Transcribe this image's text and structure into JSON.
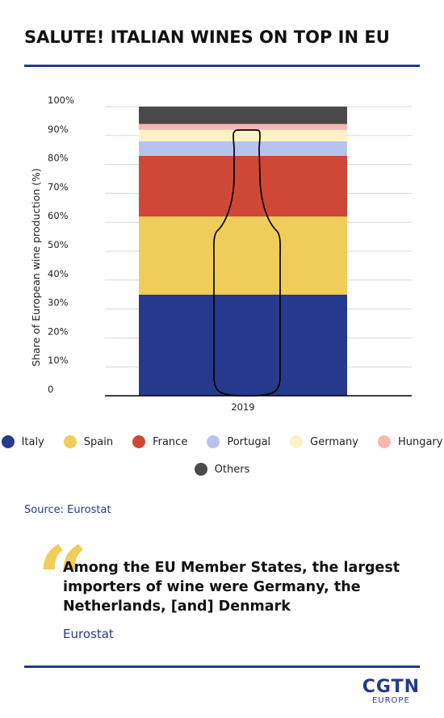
{
  "header": {
    "title": "SALUTE! ITALIAN WINES ON TOP IN EU"
  },
  "chart_data": {
    "type": "bar",
    "stacked": true,
    "categories": [
      "2019"
    ],
    "ylabel": "Share of European wine production (%)",
    "xlabel": "",
    "ylim": [
      0,
      100
    ],
    "y_ticks": [
      "0",
      "10%",
      "20%",
      "30%",
      "40%",
      "50%",
      "60%",
      "70%",
      "80%",
      "90%",
      "100%"
    ],
    "grid": true,
    "legend_position": "bottom",
    "series": [
      {
        "name": "Italy",
        "values": [
          35
        ],
        "color": "#253a8c"
      },
      {
        "name": "Spain",
        "values": [
          27
        ],
        "color": "#f0cd5a"
      },
      {
        "name": "France",
        "values": [
          21
        ],
        "color": "#cf4836"
      },
      {
        "name": "Portugal",
        "values": [
          5
        ],
        "color": "#b6c4ec"
      },
      {
        "name": "Germany",
        "values": [
          4
        ],
        "color": "#fdf2c6"
      },
      {
        "name": "Hungary",
        "values": [
          2
        ],
        "color": "#f7b6b0"
      },
      {
        "name": "Others",
        "values": [
          6
        ],
        "color": "#4a4a4a"
      }
    ],
    "overlay_icon": "wine-bottle-outline-icon"
  },
  "source": {
    "text": "Source: Eurostat"
  },
  "quote": {
    "text": "Among the EU Member States, the largest importers of wine were Germany, the Netherlands, [and] Denmark",
    "attribution": "Eurostat",
    "mark_color": "#f0cd5a"
  },
  "logo": {
    "main": "CGTN",
    "sub": "EUROPE",
    "color": "#253a8c"
  }
}
